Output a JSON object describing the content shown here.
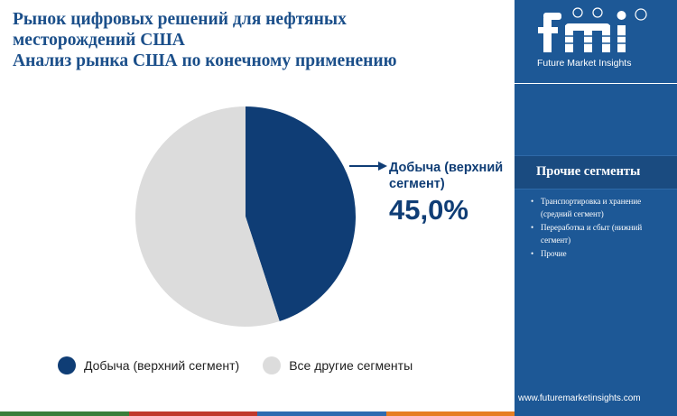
{
  "header": {
    "title_line1": "Рынок цифровых решений для нефтяных",
    "title_line2": "месторождений США",
    "subtitle": "Анализ рынка США по конечному применению"
  },
  "chart_data": {
    "type": "pie",
    "categories": [
      "Добыча (верхний сегмент)",
      "Все другие сегменты"
    ],
    "values": [
      45.0,
      55.0
    ],
    "colors": [
      "#0f3d75",
      "#dcdcdc"
    ],
    "callout": {
      "label": "Добыча (верхний сегмент)",
      "value": "45,0%"
    },
    "legend_position": "bottom"
  },
  "legend": {
    "items": [
      {
        "label": "Добыча (верхний сегмент)",
        "color": "#0f3d75"
      },
      {
        "label": "Все другие сегменты",
        "color": "#dcdcdc"
      }
    ]
  },
  "sidebar": {
    "logo_text": "Future Market Insights",
    "logo_icon": "fmi-logo",
    "segments_title": "Прочие сегменты",
    "segments": [
      "Транспортировка и хранение (средний сегмент)",
      "Переработка и сбыт (нижний сегмент)",
      "Прочие"
    ],
    "footer_url": "www.futuremarketinsights.com",
    "bg_color": "#1d5896"
  },
  "bottom_bar_colors": [
    "#3a7d3a",
    "#c0392b",
    "#2e6bb0",
    "#e67e22"
  ]
}
